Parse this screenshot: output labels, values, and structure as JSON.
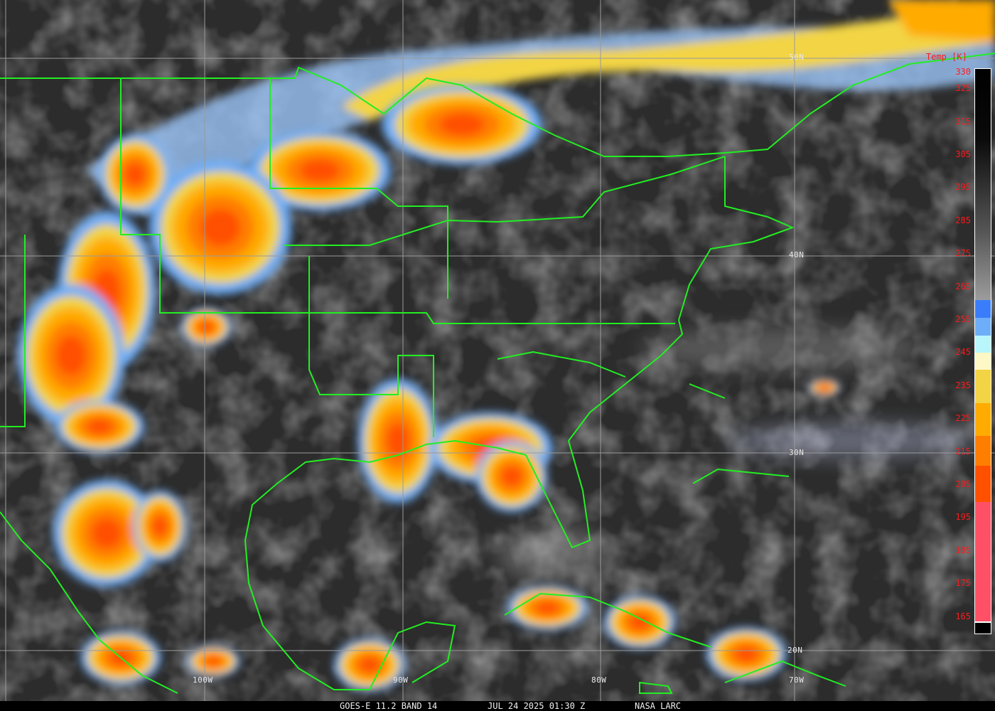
{
  "image": {
    "satellite": "GOES-E",
    "caption": {
      "product": "GOES-E 11.2 BAND 14",
      "datetime": "JUL 24 2025 01:30 Z",
      "source": "NASA LARC"
    },
    "grid_labels": {
      "lat": [
        "50N",
        "40N",
        "30N",
        "20N"
      ],
      "lon": [
        "100W",
        "90W",
        "80W",
        "70W"
      ]
    },
    "colors": {
      "coastline": "#22ee22",
      "grid": "#9a9a9a",
      "label": "#ff1a1a"
    }
  },
  "colorbar": {
    "title": "Temp [K]",
    "ticks": [
      "330",
      "325",
      "315",
      "305",
      "295",
      "285",
      "275",
      "265",
      "255",
      "245",
      "235",
      "225",
      "215",
      "205",
      "195",
      "185",
      "175",
      "165"
    ],
    "segments": [
      {
        "from": 330,
        "to": 263,
        "color": "gradient black-to-gray"
      },
      {
        "from": 263,
        "to": 258,
        "color": "#3a7dfa"
      },
      {
        "from": 258,
        "to": 252,
        "color": "#6eaef8"
      },
      {
        "from": 252,
        "to": 246,
        "color": "#b8f6fb"
      },
      {
        "from": 246,
        "to": 241,
        "color": "#fdf8c6"
      },
      {
        "from": 241,
        "to": 231,
        "color": "#f2d444"
      },
      {
        "from": 231,
        "to": 221,
        "color": "#ffab00"
      },
      {
        "from": 221,
        "to": 212,
        "color": "#ff7e00"
      },
      {
        "from": 212,
        "to": 201,
        "color": "#ff5000"
      },
      {
        "from": 201,
        "to": 165,
        "color": "#ff5066"
      }
    ]
  }
}
